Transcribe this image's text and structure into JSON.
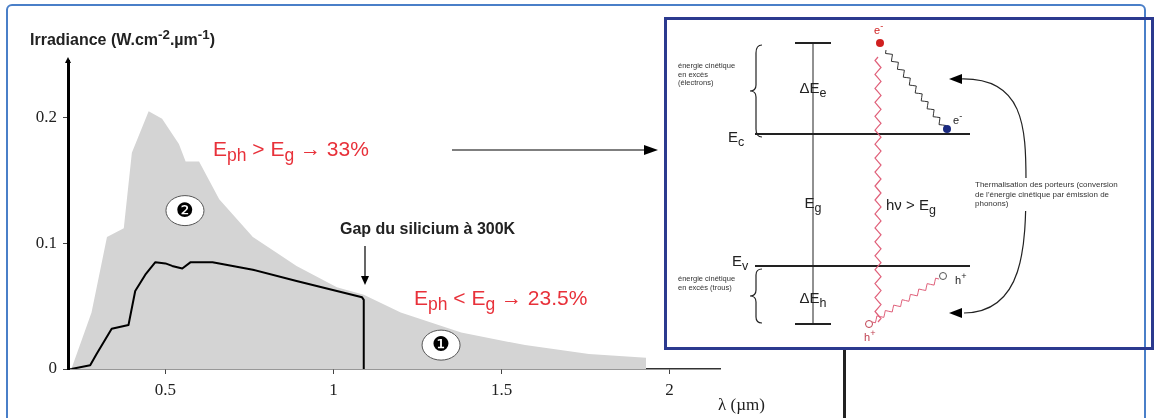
{
  "chart_data": {
    "type": "area",
    "xlabel": "λ (µm)",
    "ylabel": "Irradiance (W.cm$^{-2}$.µm$^{-1}$)",
    "xlim": [
      0.21,
      2.15
    ],
    "ylim": [
      0,
      0.245
    ],
    "xticks": [
      0.5,
      1,
      1.5,
      2
    ],
    "yticks": [
      0,
      0.1,
      0.2
    ],
    "grid": false,
    "marker": "none",
    "series": [
      {
        "type": "area",
        "color": "#d4d4d4",
        "x": [
          0.22,
          0.28,
          0.326,
          0.376,
          0.4,
          0.45,
          0.49,
          0.54,
          0.56,
          0.6,
          0.66,
          0.76,
          0.89,
          1.01,
          1.09,
          1.2,
          1.38,
          1.57,
          1.76,
          1.93
        ],
        "values": [
          0,
          0.045,
          0.105,
          0.112,
          0.172,
          0.205,
          0.199,
          0.179,
          0.165,
          0.165,
          0.135,
          0.105,
          0.082,
          0.065,
          0.059,
          0.045,
          0.029,
          0.019,
          0.012,
          0.009
        ]
      },
      {
        "type": "line",
        "color": "#000000",
        "x": [
          0.22,
          0.276,
          0.295,
          0.34,
          0.39,
          0.41,
          0.44,
          0.47,
          0.5,
          0.52,
          0.55,
          0.575,
          0.64,
          0.76,
          0.89,
          1.01,
          1.085,
          1.09,
          1.09
        ],
        "values": [
          0,
          0.003,
          0.012,
          0.032,
          0.035,
          0.062,
          0.075,
          0.085,
          0.084,
          0.082,
          0.08,
          0.085,
          0.085,
          0.079,
          0.07,
          0.062,
          0.057,
          0.055,
          0
        ]
      }
    ],
    "annotations": [
      "E$_{ph}$ > E$_{g}$ → 33%",
      "E$_{ph}$ < E$_{g}$ → 23.5%",
      "Gap du silicium à 300K",
      {
        "text": "❷",
        "x": 0.558,
        "y": 0.126
      },
      {
        "text": "❶",
        "x": 1.32,
        "y": 0.019
      },
      "énergie cinétique en excès (électrons)",
      "ΔE$_{e}$",
      "E$_{c}$",
      "E$_{g}$",
      "hν > E$_{g}$",
      "E$_{v}$",
      "énergie cinétique en excès (trous)",
      "ΔE$_{h}$",
      "Thermalisation des porteurs (conversion de l'énergie cinétique par émission de phonons)",
      "e$^{-}$",
      "e$^{-}$",
      "h$^{+}$",
      "h$^{+}$"
    ]
  }
}
